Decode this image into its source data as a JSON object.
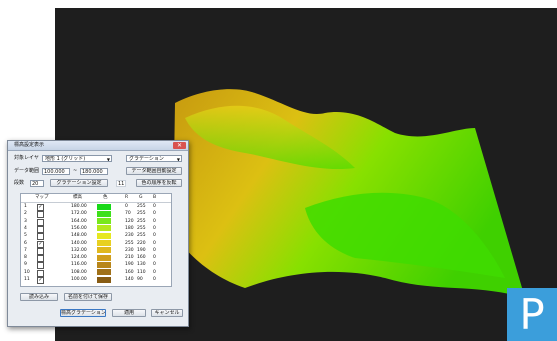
{
  "badge": {
    "text": "P"
  },
  "dialog": {
    "title": "標高設定表示",
    "close_label": "✕",
    "label_row1": "対象レイヤ",
    "layer_select": "地形 1 (グリッド)",
    "mode_select": "グラデーション",
    "label_range": "データ範囲",
    "range_min": "100.000",
    "range_sep": "~",
    "range_max": "180.000",
    "auto_range_button": "データ範囲自動設定",
    "label_steps": "段数",
    "steps_value": "20",
    "gradient_button": "グラデーション設定",
    "divisions_value": "11",
    "reverse_button": "色の順序を反転",
    "table": {
      "headers": [
        "マップ",
        "標高",
        "色",
        "R",
        "G",
        "B"
      ],
      "rows": [
        {
          "idx": "1",
          "checked": true,
          "elev": "180.00",
          "color": "#18d818",
          "r": "0",
          "g": "255",
          "b": "0"
        },
        {
          "idx": "2",
          "checked": false,
          "elev": "172.00",
          "color": "#3ee01a",
          "r": "70",
          "g": "255",
          "b": "0"
        },
        {
          "idx": "3",
          "checked": false,
          "elev": "164.00",
          "color": "#78e81c",
          "r": "120",
          "g": "255",
          "b": "0"
        },
        {
          "idx": "4",
          "checked": false,
          "elev": "156.00",
          "color": "#b4e81e",
          "r": "180",
          "g": "255",
          "b": "0"
        },
        {
          "idx": "5",
          "checked": false,
          "elev": "148.00",
          "color": "#e6e820",
          "r": "230",
          "g": "255",
          "b": "0"
        },
        {
          "idx": "6",
          "checked": true,
          "elev": "140.00",
          "color": "#e8d020",
          "r": "255",
          "g": "220",
          "b": "0"
        },
        {
          "idx": "7",
          "checked": false,
          "elev": "132.00",
          "color": "#e0b81e",
          "r": "230",
          "g": "190",
          "b": "0"
        },
        {
          "idx": "8",
          "checked": false,
          "elev": "124.00",
          "color": "#d09e1c",
          "r": "210",
          "g": "160",
          "b": "0"
        },
        {
          "idx": "9",
          "checked": false,
          "elev": "116.00",
          "color": "#b8861a",
          "r": "190",
          "g": "130",
          "b": "0"
        },
        {
          "idx": "10",
          "checked": false,
          "elev": "108.00",
          "color": "#a07018",
          "r": "160",
          "g": "110",
          "b": "0"
        },
        {
          "idx": "11",
          "checked": true,
          "elev": "100.00",
          "color": "#885c14",
          "r": "140",
          "g": "90",
          "b": "0"
        }
      ]
    },
    "load_button": "読み込み",
    "save_button": "名前を付けて保存",
    "preview_button": "標高グラデーション表示",
    "apply_button": "適用",
    "cancel_button": "キャンセル"
  },
  "colors": {
    "viewport_bg": "#1e1e1e",
    "badge": "#3b9edb",
    "terrain_high": "#d7b414",
    "terrain_low": "#38e000"
  }
}
